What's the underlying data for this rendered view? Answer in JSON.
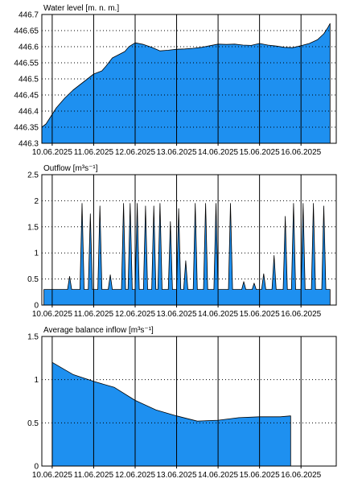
{
  "colors": {
    "fill": "#1e90f0",
    "stroke": "#000000",
    "grid": "#000000",
    "background": "#ffffff"
  },
  "chart_data": [
    {
      "type": "area",
      "title": "Water level [m. n. m.]",
      "xlabel": "",
      "ylabel": "",
      "ylim": [
        446.3,
        446.7
      ],
      "yticks": [
        "446.7",
        "446.65",
        "446.6",
        "446.55",
        "446.5",
        "446.45",
        "446.4",
        "446.35",
        "446.3"
      ],
      "ytick_values": [
        446.7,
        446.65,
        446.6,
        446.55,
        446.5,
        446.45,
        446.4,
        446.35,
        446.3
      ],
      "xlim": [
        -0.25,
        6.85
      ],
      "xticks": [
        "10.06.2025",
        "11.06.2025",
        "12.06.2025",
        "13.06.2025",
        "14.06.2025",
        "15.06.2025",
        "16.06.2025"
      ],
      "grid": {
        "x": "solid",
        "y": "dotted"
      },
      "x": [
        -0.25,
        -0.15,
        0.0,
        0.1,
        0.3,
        0.5,
        0.7,
        0.9,
        1.0,
        1.2,
        1.3,
        1.45,
        1.6,
        1.75,
        1.85,
        2.0,
        2.2,
        2.4,
        2.6,
        2.8,
        3.0,
        3.2,
        3.4,
        3.6,
        3.8,
        4.0,
        4.2,
        4.4,
        4.6,
        4.8,
        5.0,
        5.2,
        5.4,
        5.6,
        5.8,
        6.0,
        6.2,
        6.4,
        6.55,
        6.65,
        6.7
      ],
      "values": [
        446.35,
        446.36,
        446.39,
        446.41,
        446.44,
        446.465,
        446.485,
        446.505,
        446.515,
        446.525,
        446.54,
        446.565,
        446.575,
        446.585,
        446.6,
        446.612,
        446.607,
        446.598,
        446.587,
        446.589,
        446.592,
        446.593,
        446.595,
        446.598,
        446.603,
        446.608,
        446.607,
        446.608,
        446.605,
        446.604,
        446.61,
        446.605,
        446.602,
        446.598,
        446.597,
        446.603,
        446.61,
        446.622,
        446.64,
        446.66,
        446.672
      ]
    },
    {
      "type": "area",
      "title": "Outflow [m³s⁻¹]",
      "xlabel": "",
      "ylabel": "",
      "ylim": [
        0,
        2.5
      ],
      "yticks": [
        "2.5",
        "2",
        "1.5",
        "1",
        "0.5",
        "0"
      ],
      "ytick_values": [
        2.5,
        2,
        1.5,
        1,
        0.5,
        0
      ],
      "xlim": [
        -0.25,
        6.85
      ],
      "xticks": [
        "10.06.2025",
        "11.06.2025",
        "12.06.2025",
        "13.06.2025",
        "14.06.2025",
        "15.06.2025",
        "16.06.2025"
      ],
      "grid": {
        "x": "solid",
        "y": "dotted"
      },
      "baseline": 0.3,
      "x_start": -0.2,
      "x_end": 6.7,
      "peak_half_width": 0.05,
      "peaks": [
        {
          "x": 0.42,
          "y": 0.55
        },
        {
          "x": 0.72,
          "y": 1.95
        },
        {
          "x": 0.92,
          "y": 1.75
        },
        {
          "x": 1.15,
          "y": 1.9
        },
        {
          "x": 1.4,
          "y": 0.58
        },
        {
          "x": 1.72,
          "y": 1.95
        },
        {
          "x": 1.88,
          "y": 1.95
        },
        {
          "x": 2.05,
          "y": 1.95
        },
        {
          "x": 2.25,
          "y": 1.9
        },
        {
          "x": 2.45,
          "y": 1.9
        },
        {
          "x": 2.6,
          "y": 1.95
        },
        {
          "x": 2.85,
          "y": 1.6
        },
        {
          "x": 3.05,
          "y": 1.85
        },
        {
          "x": 3.22,
          "y": 0.85
        },
        {
          "x": 3.45,
          "y": 1.95
        },
        {
          "x": 3.7,
          "y": 1.95
        },
        {
          "x": 3.95,
          "y": 1.95
        },
        {
          "x": 4.3,
          "y": 1.95
        },
        {
          "x": 4.62,
          "y": 0.45
        },
        {
          "x": 4.87,
          "y": 0.42
        },
        {
          "x": 5.1,
          "y": 0.6
        },
        {
          "x": 5.35,
          "y": 0.95
        },
        {
          "x": 5.62,
          "y": 1.7
        },
        {
          "x": 5.82,
          "y": 1.95
        },
        {
          "x": 6.05,
          "y": 1.95
        },
        {
          "x": 6.3,
          "y": 1.95
        },
        {
          "x": 6.55,
          "y": 1.9
        }
      ]
    },
    {
      "type": "area",
      "title": "Average balance inflow [m³s⁻¹]",
      "xlabel": "",
      "ylabel": "",
      "ylim": [
        0,
        1.5
      ],
      "yticks": [
        "1.5",
        "1",
        "0.5",
        "0"
      ],
      "ytick_values": [
        1.5,
        1,
        0.5,
        0
      ],
      "xlim": [
        -0.25,
        6.85
      ],
      "xticks": [
        "10.06.2025",
        "11.06.2025",
        "12.06.2025",
        "13.06.2025",
        "14.06.2025",
        "15.06.2025",
        "16.06.2025"
      ],
      "grid": {
        "x": "solid",
        "y": "dotted"
      },
      "x": [
        0.0,
        0.5,
        1.0,
        1.5,
        2.0,
        2.5,
        3.0,
        3.5,
        4.0,
        4.5,
        5.0,
        5.5,
        5.75
      ],
      "values": [
        1.2,
        1.06,
        0.98,
        0.91,
        0.76,
        0.65,
        0.58,
        0.52,
        0.53,
        0.56,
        0.57,
        0.57,
        0.58
      ]
    }
  ]
}
